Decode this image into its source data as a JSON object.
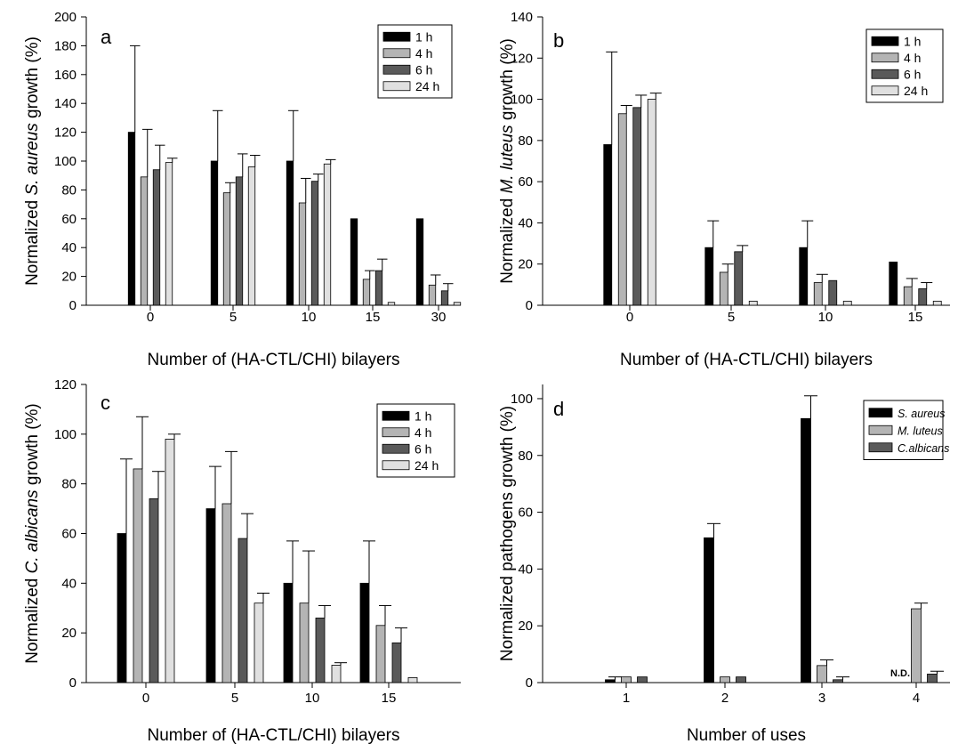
{
  "chart_data": [
    {
      "panel": "a",
      "type": "bar",
      "xlabel": "Number of (HA-CTL/CHI) bilayers",
      "ylabel_parts": [
        {
          "text": "Normalized ",
          "italic": false
        },
        {
          "text": "S. aureus",
          "italic": true
        },
        {
          "text": " growth (%)",
          "italic": false
        }
      ],
      "ylim": [
        0,
        200
      ],
      "yticks": [
        0,
        20,
        40,
        60,
        80,
        100,
        120,
        140,
        160,
        180,
        200
      ],
      "categories": [
        "0",
        "5",
        "10",
        "15",
        "30"
      ],
      "legend_position": "top-right",
      "series": [
        {
          "name": "1 h",
          "color": "#000000",
          "values": [
            120,
            100,
            100,
            60,
            60
          ],
          "errors": [
            60,
            35,
            35,
            0,
            0
          ]
        },
        {
          "name": "4 h",
          "color": "#b4b4b4",
          "values": [
            89,
            78,
            71,
            18,
            14
          ],
          "errors": [
            33,
            7,
            17,
            6,
            7
          ]
        },
        {
          "name": "6 h",
          "color": "#5a5a5a",
          "values": [
            94,
            89,
            86,
            24,
            10
          ],
          "errors": [
            17,
            16,
            5,
            8,
            5
          ]
        },
        {
          "name": "24 h",
          "color": "#e0e0e0",
          "values": [
            99,
            96,
            98,
            2,
            2
          ],
          "errors": [
            3,
            8,
            3,
            0,
            0
          ]
        }
      ]
    },
    {
      "panel": "b",
      "type": "bar",
      "xlabel": "Number of (HA-CTL/CHI) bilayers",
      "ylabel_parts": [
        {
          "text": "Normalized ",
          "italic": false
        },
        {
          "text": "M. luteus",
          "italic": true
        },
        {
          "text": " growth (%)",
          "italic": false
        }
      ],
      "ylim": [
        0,
        140
      ],
      "yticks": [
        0,
        20,
        40,
        60,
        80,
        100,
        120,
        140
      ],
      "categories": [
        "0",
        "5",
        "10",
        "15"
      ],
      "legend_position": "top-right",
      "series": [
        {
          "name": "1 h",
          "color": "#000000",
          "values": [
            78,
            28,
            28,
            21
          ],
          "errors": [
            45,
            13,
            13,
            0
          ]
        },
        {
          "name": "4 h",
          "color": "#b4b4b4",
          "values": [
            93,
            16,
            11,
            9
          ],
          "errors": [
            4,
            4,
            4,
            4
          ]
        },
        {
          "name": "6 h",
          "color": "#5a5a5a",
          "values": [
            96,
            26,
            12,
            8
          ],
          "errors": [
            6,
            3,
            0,
            3
          ]
        },
        {
          "name": "24 h",
          "color": "#e0e0e0",
          "values": [
            100,
            2,
            2,
            2
          ],
          "errors": [
            3,
            0,
            0,
            0
          ]
        }
      ]
    },
    {
      "panel": "c",
      "type": "bar",
      "xlabel": "Number of (HA-CTL/CHI) bilayers",
      "ylabel_parts": [
        {
          "text": "Normalized ",
          "italic": false
        },
        {
          "text": "C. albicans",
          "italic": true
        },
        {
          "text": " growth (%)",
          "italic": false
        }
      ],
      "ylim": [
        0,
        120
      ],
      "yticks": [
        0,
        20,
        40,
        60,
        80,
        100,
        120
      ],
      "categories": [
        "0",
        "5",
        "10",
        "15"
      ],
      "legend_position": "top-right",
      "series": [
        {
          "name": "1 h",
          "color": "#000000",
          "values": [
            60,
            70,
            40,
            40
          ],
          "errors": [
            30,
            17,
            17,
            17
          ]
        },
        {
          "name": "4 h",
          "color": "#b4b4b4",
          "values": [
            86,
            72,
            32,
            23
          ],
          "errors": [
            21,
            21,
            21,
            8
          ]
        },
        {
          "name": "6 h",
          "color": "#5a5a5a",
          "values": [
            74,
            58,
            26,
            16
          ],
          "errors": [
            11,
            10,
            5,
            6
          ]
        },
        {
          "name": "24 h",
          "color": "#e0e0e0",
          "values": [
            98,
            32,
            7,
            2
          ],
          "errors": [
            2,
            4,
            1,
            0
          ]
        }
      ]
    },
    {
      "panel": "d",
      "type": "bar",
      "xlabel": "Number of uses",
      "ylabel_parts": [
        {
          "text": "Normalized pathogens growth (%)",
          "italic": false
        }
      ],
      "ylim": [
        0,
        105
      ],
      "yticks": [
        0,
        20,
        40,
        60,
        80,
        100
      ],
      "categories": [
        "1",
        "2",
        "3",
        "4"
      ],
      "legend_position": "top-right",
      "annotations": [
        {
          "text": "N.D.",
          "category": "4",
          "series": "S. aureus"
        }
      ],
      "series": [
        {
          "name": "S. aureus",
          "italic": true,
          "color": "#000000",
          "values": [
            1,
            51,
            93,
            null
          ],
          "errors": [
            1,
            5,
            8,
            null
          ]
        },
        {
          "name": "M. luteus",
          "italic": true,
          "color": "#b4b4b4",
          "values": [
            2,
            2,
            6,
            26
          ],
          "errors": [
            0,
            0,
            2,
            2
          ]
        },
        {
          "name": "C.albicans",
          "italic": true,
          "color": "#5a5a5a",
          "values": [
            2,
            2,
            1,
            3
          ],
          "errors": [
            0,
            0,
            1,
            1
          ]
        }
      ]
    }
  ]
}
